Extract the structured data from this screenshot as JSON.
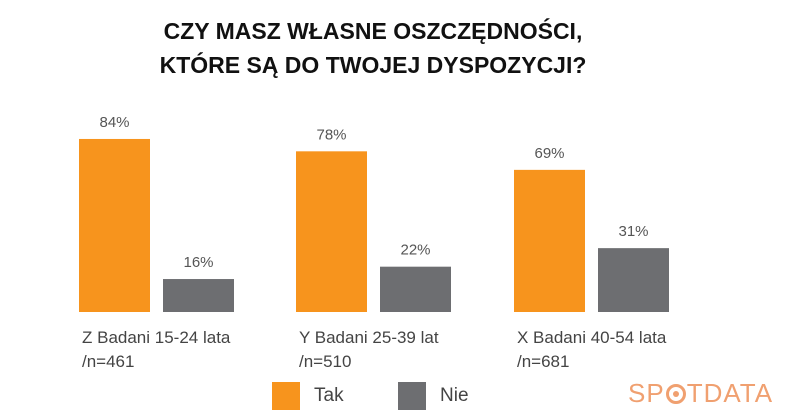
{
  "title": {
    "line1": "CZY MASZ WŁASNE OSZCZĘDNOŚCI,",
    "line2": "KTÓRE SĄ DO TWOJEJ DYSPOZYCJI?"
  },
  "chart_data": {
    "type": "bar",
    "categories": [
      {
        "line1": "Z Badani 15-24 lata",
        "line2": "/n=461"
      },
      {
        "line1": "Y Badani 25-39 lat",
        "line2": "/n=510"
      },
      {
        "line1": "X Badani 40-54 lata",
        "line2": "/n=681"
      }
    ],
    "series": [
      {
        "name": "Tak",
        "color": "#f7941d",
        "values": [
          84,
          78,
          69
        ],
        "labels": [
          "84%",
          "78%",
          "69%"
        ]
      },
      {
        "name": "Nie",
        "color": "#6d6e71",
        "values": [
          16,
          22,
          31
        ],
        "labels": [
          "16%",
          "22%",
          "31%"
        ]
      }
    ],
    "ylim": [
      0,
      100
    ],
    "grid": false,
    "legend_position": "bottom-center"
  },
  "logo": {
    "part1": "SP",
    "part2": "TDATA"
  }
}
